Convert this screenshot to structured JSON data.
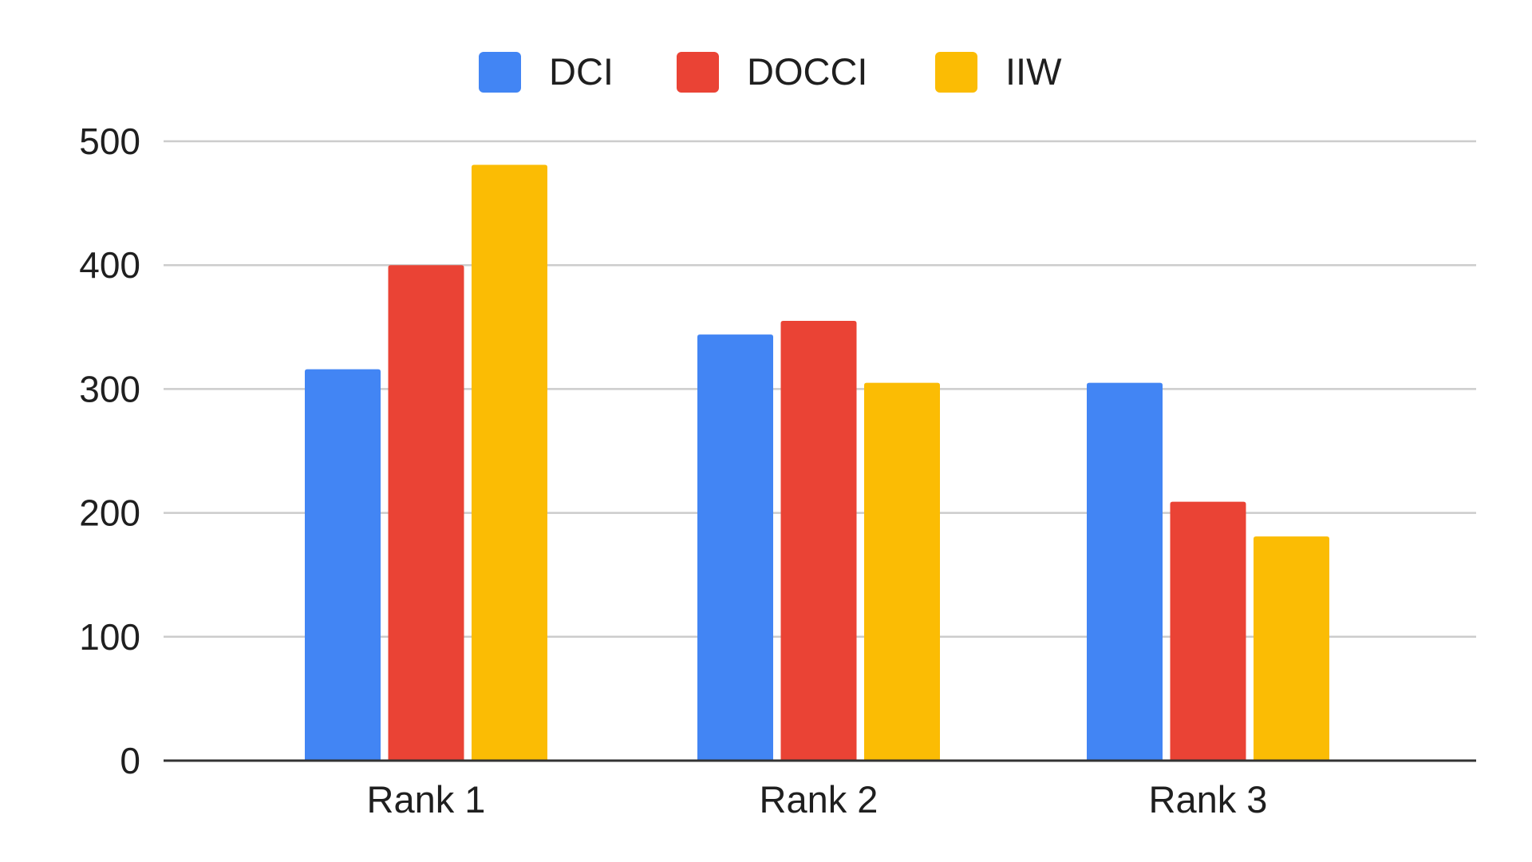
{
  "chart_data": {
    "type": "bar",
    "title": "",
    "xlabel": "",
    "ylabel": "",
    "categories": [
      "Rank 1",
      "Rank 2",
      "Rank 3"
    ],
    "series": [
      {
        "name": "DCI",
        "color": "#4285F4",
        "values": [
          316,
          344,
          305
        ]
      },
      {
        "name": "DOCCI",
        "color": "#EA4335",
        "values": [
          400,
          355,
          209
        ]
      },
      {
        "name": "IIW",
        "color": "#FBBC04",
        "values": [
          481,
          305,
          181
        ]
      }
    ],
    "ylim": [
      0,
      500
    ],
    "yticks": [
      "0",
      "100",
      "200",
      "300",
      "400",
      "500"
    ],
    "grid": true,
    "legend_position": "top-center"
  }
}
